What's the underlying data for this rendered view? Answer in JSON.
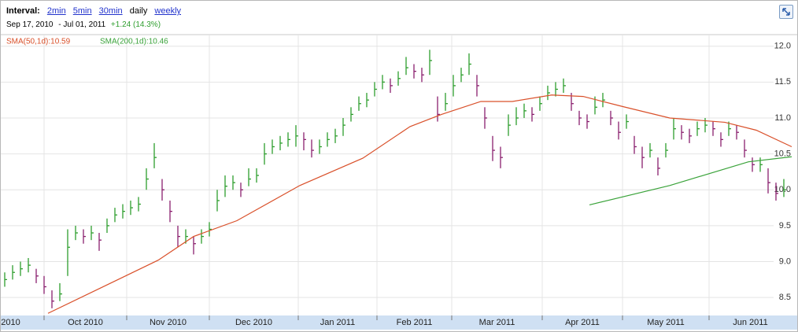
{
  "header": {
    "interval_label": "Interval:",
    "intervals": [
      "2min",
      "5min",
      "30min",
      "daily",
      "weekly"
    ],
    "start_date": "Sep 17, 2010",
    "end_date": "- Jul 01, 2011",
    "change": "+1.24 (14.3%)"
  },
  "chart_data": {
    "type": "ohlc",
    "xlim": [
      0,
      100
    ],
    "ylim": [
      8.25,
      12.15
    ],
    "yticks": [
      8.5,
      {
        "value": 9,
        "label": "9.0"
      },
      9.5,
      {
        "value": 10,
        "label": "10.0"
      },
      10.5,
      {
        "value": 11,
        "label": "11.0"
      },
      11.5,
      {
        "value": 12,
        "label": "12.0"
      }
    ],
    "xticks": [
      {
        "value": -3.5,
        "label": "2010"
      },
      {
        "value": 5,
        "label": "Oct 2010"
      },
      {
        "value": 15.5,
        "label": "Nov 2010"
      },
      {
        "value": 26,
        "label": "Dec 2010"
      },
      {
        "value": 37.3,
        "label": "Jan 2011"
      },
      {
        "value": 47.3,
        "label": "Feb 2011"
      },
      {
        "value": 56.8,
        "label": "Mar 2011"
      },
      {
        "value": 68.3,
        "label": "Apr 2011"
      },
      {
        "value": 78.5,
        "label": "May 2011"
      },
      {
        "value": 89.5,
        "label": "Jun 2011"
      }
    ],
    "grid": true,
    "up_color": "#2e9e2e",
    "down_color": "#8a1f6e",
    "high": [
      8.85,
      8.95,
      9.0,
      9.05,
      8.9,
      8.8,
      8.6,
      8.7,
      9.45,
      9.5,
      9.45,
      9.5,
      9.4,
      9.6,
      9.75,
      9.8,
      9.85,
      9.9,
      10.3,
      10.65,
      10.15,
      9.85,
      9.5,
      9.45,
      9.35,
      9.45,
      9.55,
      10.0,
      10.2,
      10.2,
      10.1,
      10.3,
      10.3,
      10.65,
      10.7,
      10.75,
      10.8,
      10.9,
      10.8,
      10.7,
      10.7,
      10.8,
      10.85,
      11.0,
      11.15,
      11.3,
      11.35,
      11.5,
      11.6,
      11.55,
      11.65,
      11.85,
      11.75,
      11.7,
      11.95,
      11.3,
      11.35,
      11.6,
      11.7,
      11.9,
      11.6,
      11.15,
      10.75,
      10.6,
      11.05,
      11.15,
      11.2,
      11.15,
      11.3,
      11.45,
      11.5,
      11.55,
      11.35,
      11.1,
      11.05,
      11.3,
      11.35,
      11.1,
      10.95,
      11.05,
      10.75,
      10.6,
      10.65,
      10.45,
      10.65,
      11.0,
      10.9,
      10.85,
      10.95,
      11.0,
      10.95,
      10.8,
      10.95,
      10.9,
      10.7,
      10.45,
      10.45,
      10.3,
      10.1,
      10.15
    ],
    "low": [
      8.65,
      8.75,
      8.8,
      8.85,
      8.7,
      8.55,
      8.35,
      8.45,
      8.8,
      9.3,
      9.25,
      9.3,
      9.15,
      9.4,
      9.55,
      9.6,
      9.65,
      9.7,
      10.0,
      10.3,
      9.85,
      9.55,
      9.2,
      9.25,
      9.1,
      9.25,
      9.35,
      9.7,
      9.9,
      10.0,
      9.9,
      10.05,
      10.1,
      10.35,
      10.5,
      10.55,
      10.6,
      10.6,
      10.55,
      10.45,
      10.5,
      10.6,
      10.65,
      10.75,
      10.95,
      11.1,
      11.15,
      11.3,
      11.4,
      11.35,
      11.45,
      11.6,
      11.55,
      11.5,
      11.6,
      10.95,
      11.1,
      11.3,
      11.5,
      11.6,
      11.3,
      10.85,
      10.4,
      10.3,
      10.75,
      10.9,
      11.0,
      10.95,
      11.1,
      11.25,
      11.3,
      11.35,
      11.1,
      10.9,
      10.85,
      11.05,
      11.15,
      10.9,
      10.7,
      10.85,
      10.5,
      10.3,
      10.45,
      10.2,
      10.45,
      10.7,
      10.7,
      10.65,
      10.75,
      10.8,
      10.75,
      10.6,
      10.75,
      10.7,
      10.45,
      10.25,
      10.25,
      9.95,
      9.85,
      9.9
    ],
    "close": [
      8.75,
      8.85,
      8.9,
      8.95,
      8.8,
      8.65,
      8.45,
      8.55,
      9.2,
      9.4,
      9.35,
      9.4,
      9.3,
      9.5,
      9.65,
      9.7,
      9.75,
      9.8,
      10.15,
      10.45,
      10.0,
      9.7,
      9.35,
      9.35,
      9.25,
      9.35,
      9.45,
      9.85,
      10.05,
      10.1,
      10.0,
      10.15,
      10.2,
      10.5,
      10.6,
      10.65,
      10.7,
      10.75,
      10.7,
      10.55,
      10.6,
      10.7,
      10.75,
      10.9,
      11.05,
      11.2,
      11.25,
      11.4,
      11.5,
      11.45,
      11.55,
      11.7,
      11.65,
      11.6,
      11.8,
      11.05,
      11.2,
      11.45,
      11.6,
      11.75,
      11.45,
      11.0,
      10.55,
      10.45,
      10.9,
      11.0,
      11.1,
      11.05,
      11.2,
      11.35,
      11.4,
      11.45,
      11.2,
      11.0,
      10.95,
      11.15,
      11.25,
      11.0,
      10.8,
      10.95,
      10.6,
      10.45,
      10.55,
      10.3,
      10.55,
      10.85,
      10.8,
      10.75,
      10.85,
      10.9,
      10.85,
      10.7,
      10.85,
      10.8,
      10.55,
      10.35,
      10.35,
      10.1,
      9.95,
      10.0
    ],
    "series": [
      {
        "name": "SMA(50,1d):10.59",
        "color": "#d9502a",
        "x": [
          5.5,
          19.5,
          24,
          29.5,
          37.5,
          45.5,
          51.5,
          55.5,
          60.5,
          64.5,
          69.5,
          73.5,
          78.5,
          84.5,
          91.5,
          95.5,
          100
        ],
        "values": [
          8.28,
          9.02,
          9.35,
          9.57,
          10.06,
          10.44,
          10.88,
          11.05,
          11.23,
          11.23,
          11.32,
          11.3,
          11.16,
          11.0,
          10.94,
          10.83,
          10.6
        ]
      },
      {
        "name": "SMA(200,1d):10.46",
        "color": "#3aa33a",
        "x": [
          74.3,
          84.5,
          94.5,
          100
        ],
        "values": [
          9.79,
          10.06,
          10.39,
          10.46
        ]
      }
    ]
  }
}
